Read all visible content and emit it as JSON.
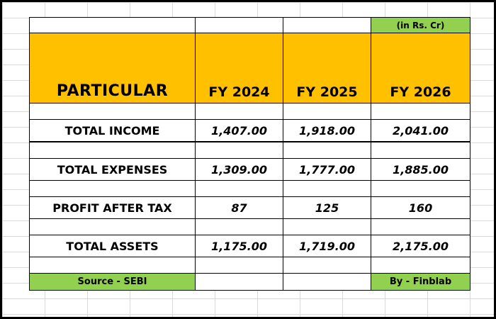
{
  "table": {
    "unit_note": "(in Rs. Cr)",
    "header": {
      "particular": "PARTICULAR",
      "years": [
        "FY 2024",
        "FY 2025",
        "FY 2026"
      ]
    },
    "rows": [
      {
        "label": "TOTAL INCOME",
        "values": [
          "1,407.00",
          "1,918.00",
          "2,041.00"
        ]
      },
      {
        "label": "TOTAL EXPENSES",
        "values": [
          "1,309.00",
          "1,777.00",
          "1,885.00"
        ]
      },
      {
        "label": "PROFIT AFTER TAX",
        "values": [
          "87",
          "125",
          "160"
        ]
      },
      {
        "label": "TOTAL ASSETS",
        "values": [
          "1,175.00",
          "1,719.00",
          "2,175.00"
        ]
      }
    ],
    "footer": {
      "source": "Source - SEBI",
      "by": "By - Finblab"
    }
  },
  "colors": {
    "header_fill": "#ffc000",
    "green_fill": "#92d050"
  }
}
